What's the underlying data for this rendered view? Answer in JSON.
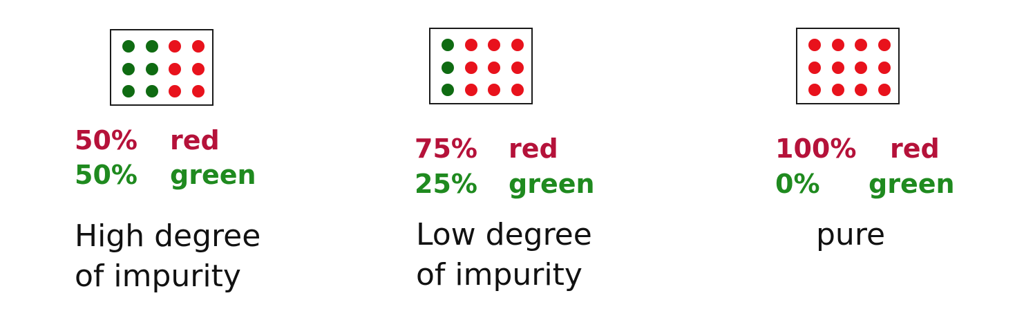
{
  "colors": {
    "red_text": "#b5123a",
    "green_text": "#1f8a1f",
    "red_dot": "#e8121c",
    "green_dot": "#0f6b12"
  },
  "panels": [
    {
      "red_pct": "50%",
      "red_word": "red",
      "green_pct": "50%",
      "green_word": "green",
      "caption_line1": "High degree",
      "caption_line2": "of impurity",
      "dots": [
        [
          "green",
          "green",
          "red",
          "red"
        ],
        [
          "green",
          "green",
          "red",
          "red"
        ],
        [
          "green",
          "green",
          "red",
          "red"
        ]
      ]
    },
    {
      "red_pct": "75%",
      "red_word": "red",
      "green_pct": "25%",
      "green_word": "green",
      "caption_line1": "Low degree",
      "caption_line2": "of impurity",
      "dots": [
        [
          "green",
          "red",
          "red",
          "red"
        ],
        [
          "green",
          "red",
          "red",
          "red"
        ],
        [
          "green",
          "red",
          "red",
          "red"
        ]
      ]
    },
    {
      "red_pct": "100%",
      "red_word": "red",
      "green_pct": "0%",
      "green_word": "green",
      "caption_line1": "pure",
      "caption_line2": "",
      "dots": [
        [
          "red",
          "red",
          "red",
          "red"
        ],
        [
          "red",
          "red",
          "red",
          "red"
        ],
        [
          "red",
          "red",
          "red",
          "red"
        ]
      ]
    }
  ]
}
